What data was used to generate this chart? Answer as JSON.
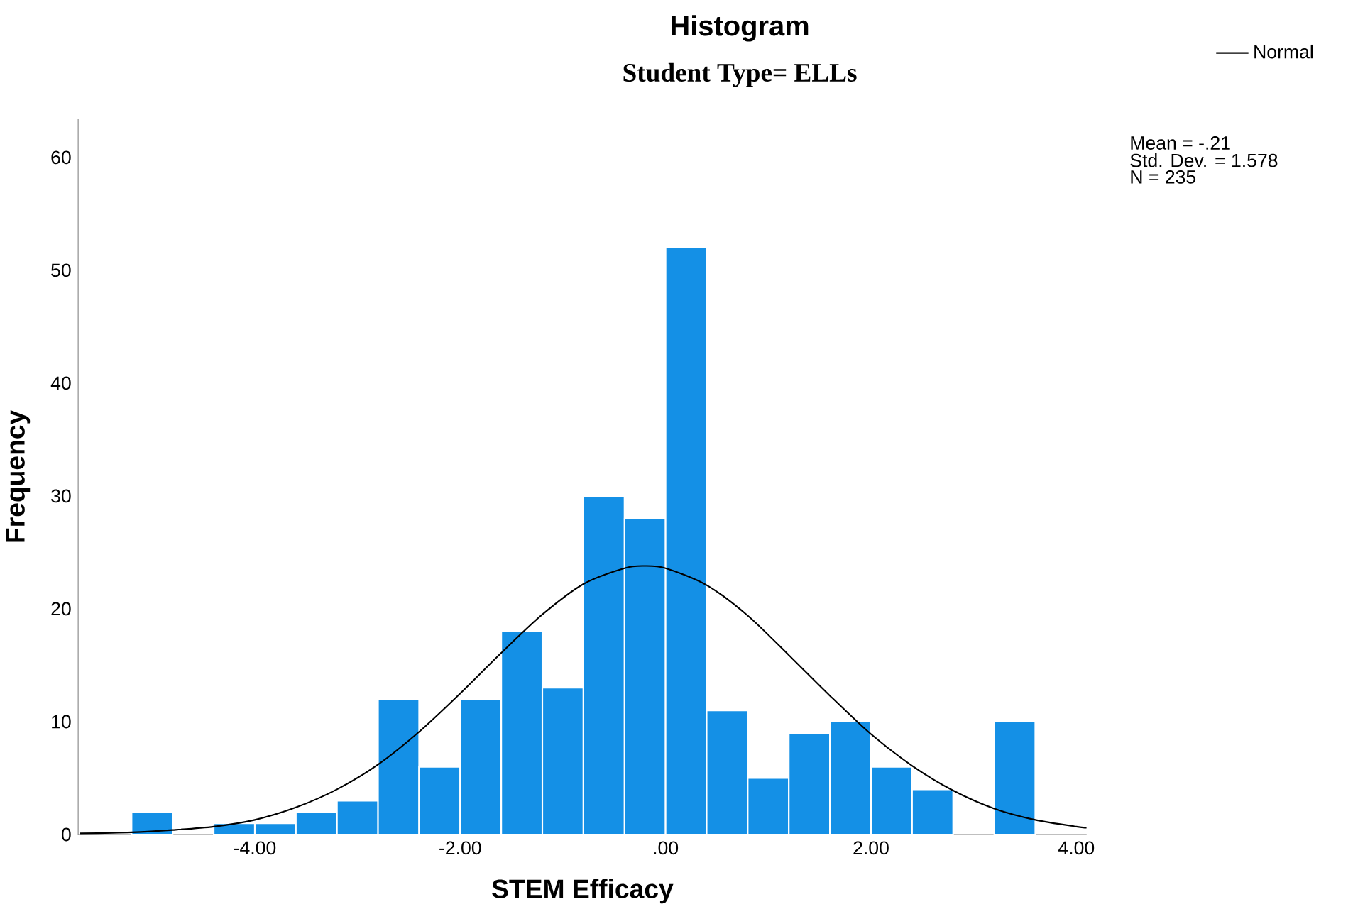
{
  "chart_data": {
    "type": "histogram",
    "title": "Histogram",
    "subtitle": "Student Type= ELLs",
    "xlabel": "STEM Efficacy",
    "ylabel": "Frequency",
    "bins": [
      -5.2,
      -4.8,
      -4.4,
      -4.0,
      -3.6,
      -3.2,
      -2.8,
      -2.4,
      -2.0,
      -1.6,
      -1.2,
      -0.8,
      -0.4,
      0.0,
      0.4,
      0.8,
      1.2,
      1.6,
      2.0,
      2.4,
      2.8,
      3.2,
      3.6
    ],
    "series": [
      {
        "color": "#1490e6",
        "values": [
          2,
          0,
          1,
          1,
          2,
          3,
          12,
          6,
          12,
          18,
          13,
          30,
          28,
          52,
          11,
          5,
          9,
          10,
          6,
          4,
          0,
          10
        ]
      },
      {
        "type": "line",
        "name": "Normal",
        "color": "#000000",
        "x": [
          -5.7,
          -5.2,
          -4.8,
          -4.4,
          -4.0,
          -3.6,
          -3.2,
          -2.8,
          -2.4,
          -2.0,
          -1.6,
          -1.2,
          -0.8,
          -0.4,
          -0.21,
          0.0,
          0.4,
          0.8,
          1.2,
          1.6,
          2.0,
          2.4,
          2.8,
          3.2,
          3.6,
          4.0,
          4.1
        ],
        "values": [
          0.1,
          0.2,
          0.4,
          0.7,
          1.3,
          2.4,
          4.0,
          6.2,
          9.1,
          12.5,
          16.1,
          19.5,
          22.2,
          23.6,
          23.8,
          23.6,
          22.1,
          19.4,
          15.9,
          12.3,
          8.9,
          6.1,
          3.9,
          2.3,
          1.3,
          0.7,
          0.6
        ]
      }
    ],
    "xlim": [
      -5.72,
      4.1
    ],
    "ylim": [
      0,
      63.4
    ],
    "xticks": [
      {
        "value": -4,
        "label": "-4.00"
      },
      {
        "value": -2,
        "label": "-2.00"
      },
      {
        "value": 0,
        "label": ".00"
      },
      {
        "value": 2,
        "label": "2.00"
      },
      {
        "value": 4,
        "label": "4.00"
      }
    ],
    "yticks": [
      0,
      10,
      20,
      30,
      40,
      50,
      60
    ],
    "annotations": [
      "Mean = -.21",
      "Std. Dev. = 1.578",
      "N = 235"
    ],
    "legend": "top right",
    "grid": false
  }
}
